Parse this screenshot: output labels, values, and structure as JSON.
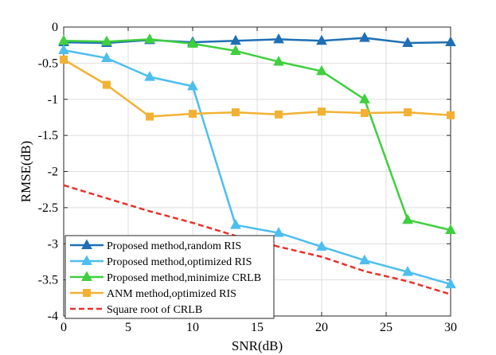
{
  "chart_data": {
    "type": "line",
    "title": "",
    "xlabel": "SNR(dB)",
    "ylabel": "RMSE(dB)",
    "xlim": [
      0,
      30
    ],
    "ylim": [
      -4,
      0
    ],
    "grid": true,
    "legend_position": "bottom-left",
    "x_ticks": [
      0,
      5,
      10,
      15,
      20,
      25,
      30
    ],
    "y_ticks": [
      0,
      -0.5,
      -1,
      -1.5,
      -2,
      -2.5,
      -3,
      -3.5,
      -4
    ],
    "x_tick_labels": [
      "0",
      "5",
      "10",
      "15",
      "20",
      "25",
      "30"
    ],
    "y_tick_labels": [
      "0",
      "-0.5",
      "-1",
      "-1.5",
      "-2",
      "-2.5",
      "-3",
      "-3.5",
      "-4"
    ],
    "series": [
      {
        "name": "Proposed method,random RIS",
        "color": "#1f6fb4",
        "marker": "triangle",
        "dash": "solid",
        "x": [
          0,
          3.33,
          6.67,
          10,
          13.33,
          16.67,
          20,
          23.33,
          26.67,
          30
        ],
        "values": [
          -0.21,
          -0.22,
          -0.18,
          -0.21,
          -0.19,
          -0.17,
          -0.19,
          -0.15,
          -0.22,
          -0.21
        ]
      },
      {
        "name": "Proposed method,optimized RIS",
        "color": "#4dbeee",
        "marker": "triangle",
        "dash": "solid",
        "x": [
          0,
          3.33,
          6.67,
          10,
          13.33,
          16.67,
          20,
          23.33,
          26.67,
          30
        ],
        "values": [
          -0.32,
          -0.43,
          -0.69,
          -0.82,
          -2.74,
          -2.85,
          -3.04,
          -3.23,
          -3.39,
          -3.56
        ]
      },
      {
        "name": "Proposed method,minimize CRLB",
        "color": "#3fcf3f",
        "marker": "triangle",
        "dash": "solid",
        "x": [
          0,
          3.33,
          6.67,
          10,
          13.33,
          16.67,
          20,
          23.33,
          26.67,
          30
        ],
        "values": [
          -0.19,
          -0.2,
          -0.17,
          -0.23,
          -0.33,
          -0.48,
          -0.61,
          -1.0,
          -2.67,
          -2.81
        ]
      },
      {
        "name": "ANM method,optimized RIS",
        "color": "#f2b134",
        "marker": "square",
        "dash": "solid",
        "x": [
          0,
          3.33,
          6.67,
          10,
          13.33,
          16.67,
          20,
          23.33,
          26.67,
          30
        ],
        "values": [
          -0.45,
          -0.8,
          -1.24,
          -1.2,
          -1.18,
          -1.21,
          -1.17,
          -1.19,
          -1.18,
          -1.22
        ]
      },
      {
        "name": "Square root of CRLB",
        "color": "#e8312a",
        "marker": "none",
        "dash": "dashed",
        "x": [
          0,
          3.33,
          6.67,
          10,
          13.33,
          16.67,
          20,
          23.33,
          26.67,
          30
        ],
        "values": [
          -2.19,
          -2.37,
          -2.55,
          -2.71,
          -2.89,
          -3.04,
          -3.18,
          -3.38,
          -3.52,
          -3.7
        ]
      }
    ]
  }
}
